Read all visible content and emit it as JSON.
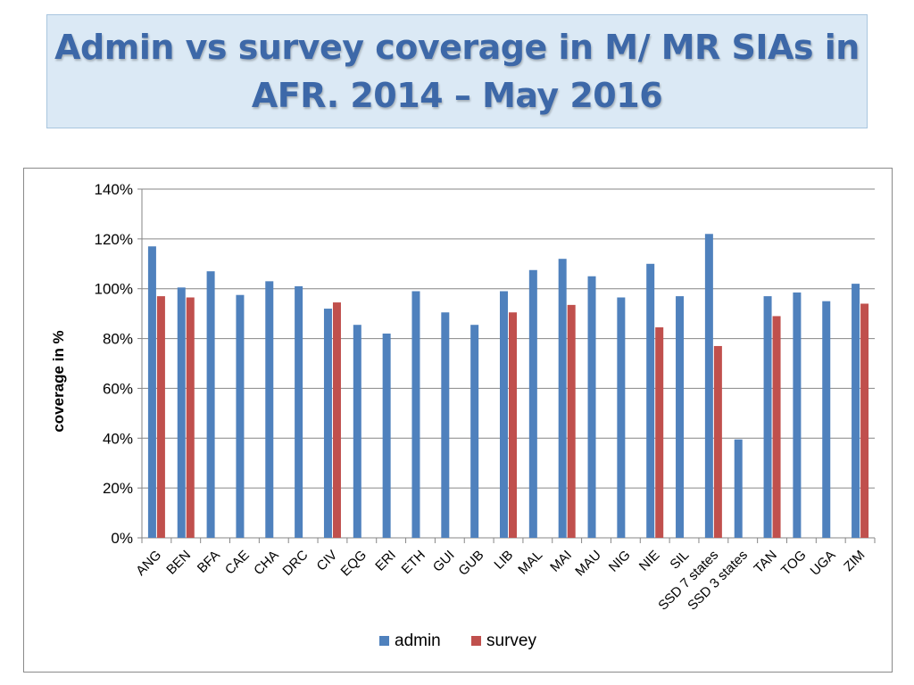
{
  "page": {
    "title_line1": "Admin vs survey coverage in M/ MR SIAs in",
    "title_line2": "AFR. 2014 – May 2016"
  },
  "colors": {
    "admin": "#4f81bd",
    "survey": "#c0504d",
    "grid": "#868686",
    "title": "#3d68a8",
    "title_bg": "#dbe9f5"
  },
  "chart_data": {
    "type": "bar",
    "title": "Admin vs survey coverage in M/ MR SIAs in AFR. 2014 – May 2016",
    "xlabel": "",
    "ylabel": "coverage in %",
    "ylim": [
      0,
      140
    ],
    "yticks": [
      0,
      20,
      40,
      60,
      80,
      100,
      120,
      140
    ],
    "ytick_labels": [
      "0%",
      "20%",
      "40%",
      "60%",
      "80%",
      "100%",
      "120%",
      "140%"
    ],
    "grid": true,
    "legend_position": "bottom",
    "categories": [
      "ANG",
      "BEN",
      "BFA",
      "CAE",
      "CHA",
      "DRC",
      "CIV",
      "EQG",
      "ERI",
      "ETH",
      "GUI",
      "GUB",
      "LIB",
      "MAL",
      "MAI",
      "MAU",
      "NIG",
      "NIE",
      "SIL",
      "SSD 7 states",
      "SSD 3 states",
      "TAN",
      "TOG",
      "UGA",
      "ZIM"
    ],
    "series": [
      {
        "name": "admin",
        "values": [
          117,
          100.5,
          107,
          97.5,
          103,
          101,
          92,
          85.5,
          82,
          99,
          90.5,
          85.5,
          99,
          107.5,
          112,
          105,
          96.5,
          110,
          97,
          122,
          39.5,
          97,
          98.5,
          95,
          102
        ]
      },
      {
        "name": "survey",
        "values": [
          97,
          96.5,
          null,
          null,
          null,
          null,
          94.5,
          null,
          null,
          null,
          null,
          null,
          90.5,
          null,
          93.5,
          null,
          null,
          84.5,
          null,
          77,
          null,
          89,
          null,
          null,
          94
        ]
      }
    ]
  }
}
